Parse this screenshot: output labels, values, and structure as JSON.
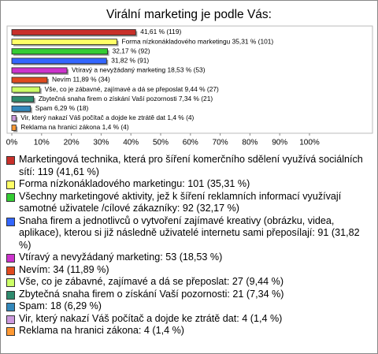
{
  "chart_data": {
    "type": "hbar",
    "title": "Virální marketing je podle Vás:",
    "categories": [
      "Marketingová technika, která pro šíření komerčního sdělení využívá sociálních sítí: 119 (41,61 %)",
      "Forma nízkonákladového marketingu: 101 (35,31 %)",
      "Všechny marketingové aktivity, jež k šíření reklamních informací využívají samotné uživatele /cílové zákazníky: 92 (32,17 %)",
      "Snaha firem a jednotlivců o vytvoření zajímavé kreativy (obrázku, videa, aplikace), kterou si již následně uživatelé internetu sami přeposílají: 91 (31,82 %)",
      "Vtíravý a nevyžádaný marketing: 53 (18,53 %)",
      "Nevím: 34 (11,89 %)",
      "Vše, co je zábavné, zajímavé a dá se přeposlat: 27 (9,44 %)",
      "Zbytečná snaha firem o získání Vaší pozornosti: 21 (7,34 %)",
      "Spam: 18 (6,29 %)",
      "Vir, který nakazí Váš počítač a dojde ke ztrátě dat: 4 (1,4 %)",
      "Reklama na hranici zákona: 4 (1,4 %)"
    ],
    "values": [
      41.61,
      35.31,
      32.17,
      31.82,
      18.53,
      11.89,
      9.44,
      7.34,
      6.29,
      1.4,
      1.4
    ],
    "value_labels": [
      "41,61 % (119)",
      "Forma nízkonákladového marketingu 35,31 % (101)",
      "32,17 % (92)",
      "31,82 % (91)",
      "Vtíravý a nevyžádaný marketing 18,53 % (53)",
      "Nevím 11,89 % (34)",
      "Vše, co je zábavné, zajímavé a dá se přeposlat 9,44 % (27)",
      "Zbytečná snaha firem o získání Vaší pozornosti 7,34 % (21)",
      "Spam 6,29 % (18)",
      "Vir, který nakazí Váš počítač a dojde ke ztrátě dat 1,4 % (4)",
      "Reklama na hranici zákona 1,4 % (4)"
    ],
    "colors": [
      "#c8302a",
      "#ffff66",
      "#33cc33",
      "#3366ff",
      "#cc33cc",
      "#e04a1e",
      "#ccff66",
      "#2e8b6e",
      "#3388bb",
      "#cc99dd",
      "#ff9933"
    ],
    "xlim": [
      0,
      100
    ],
    "xticks": [
      {
        "value": 0,
        "label": "0%"
      },
      {
        "value": 10,
        "label": "10%"
      },
      {
        "value": 20,
        "label": "20%"
      },
      {
        "value": 30,
        "label": "30%"
      },
      {
        "value": 40,
        "label": "40%"
      },
      {
        "value": 50,
        "label": "50%"
      },
      {
        "value": 60,
        "label": "60%"
      },
      {
        "value": 70,
        "label": "70%"
      },
      {
        "value": 80,
        "label": "80%"
      },
      {
        "value": 90,
        "label": "90%"
      },
      {
        "value": 100,
        "label": "100%"
      }
    ]
  }
}
